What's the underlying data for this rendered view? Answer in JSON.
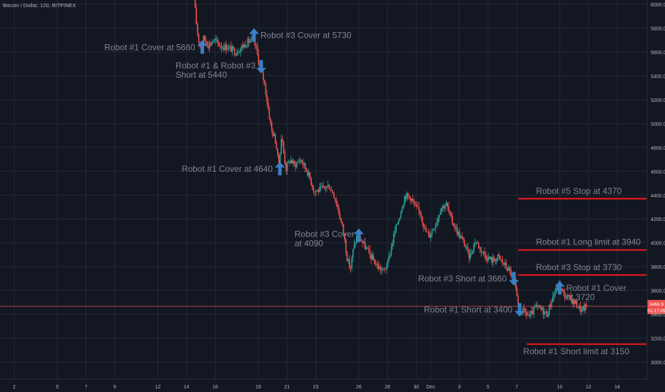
{
  "header": {
    "symbol_line": "Bitcoin / Dollar, 120, BITFINEX"
  },
  "colors": {
    "background": "#131722",
    "grid": "#242a38",
    "up": "#26a69a",
    "down": "#ef5350",
    "level": "#e0191d",
    "arrow": "#3b7fc4",
    "annotation": "#7f8591",
    "axis_text": "#b2b5be",
    "price_tag": "#ef5350"
  },
  "chart_data": {
    "type": "candlestick",
    "title": "",
    "xlabel": "",
    "ylabel": "",
    "ylim": [
      2950,
      6060
    ],
    "y_ticks": [
      3000,
      3200,
      3400,
      3600,
      3800,
      4000,
      4200,
      4400,
      4600,
      4800,
      5000,
      5200,
      5400,
      5600,
      5800,
      6000
    ],
    "y_tick_labels": [
      "3000.0",
      "3200.0",
      "3400.0",
      "3600.0",
      "3800.0",
      "4000.0",
      "4200.0",
      "4400.0",
      "4600.0",
      "4800.0",
      "5000.0",
      "5200.0",
      "5400.0",
      "5600.0",
      "5800.0",
      "6000.0"
    ],
    "x_ticks": [
      {
        "day": 2,
        "label": "2"
      },
      {
        "day": 5,
        "label": "5"
      },
      {
        "day": 7,
        "label": "7"
      },
      {
        "day": 9,
        "label": "9"
      },
      {
        "day": 12,
        "label": "12"
      },
      {
        "day": 14,
        "label": "14"
      },
      {
        "day": 16,
        "label": "16"
      },
      {
        "day": 19,
        "label": "19"
      },
      {
        "day": 21,
        "label": "21"
      },
      {
        "day": 23,
        "label": "23"
      },
      {
        "day": 26,
        "label": "26"
      },
      {
        "day": 28,
        "label": "28"
      },
      {
        "day": 30,
        "label": "30"
      },
      {
        "day": 31,
        "label": "Dec"
      },
      {
        "day": 33,
        "label": "3"
      },
      {
        "day": 35,
        "label": "5"
      },
      {
        "day": 37,
        "label": "7"
      },
      {
        "day": 40,
        "label": "10"
      },
      {
        "day": 42,
        "label": "12"
      },
      {
        "day": 44,
        "label": "14"
      }
    ],
    "price_path": [
      [
        14.6,
        6050
      ],
      [
        14.8,
        5800
      ],
      [
        15.0,
        5650
      ],
      [
        15.3,
        5720
      ],
      [
        15.6,
        5660
      ],
      [
        16.0,
        5700
      ],
      [
        16.5,
        5650
      ],
      [
        17.0,
        5640
      ],
      [
        17.5,
        5600
      ],
      [
        18.0,
        5650
      ],
      [
        18.3,
        5680
      ],
      [
        18.6,
        5700
      ],
      [
        18.9,
        5650
      ],
      [
        19.2,
        5470
      ],
      [
        19.5,
        5350
      ],
      [
        19.8,
        5100
      ],
      [
        20.0,
        4950
      ],
      [
        20.3,
        4850
      ],
      [
        20.5,
        4640
      ],
      [
        20.7,
        4900
      ],
      [
        21.0,
        4620
      ],
      [
        21.3,
        4700
      ],
      [
        21.6,
        4650
      ],
      [
        22.0,
        4700
      ],
      [
        22.5,
        4600
      ],
      [
        23.0,
        4430
      ],
      [
        23.5,
        4450
      ],
      [
        24.0,
        4480
      ],
      [
        24.3,
        4420
      ],
      [
        24.6,
        4300
      ],
      [
        25.0,
        4100
      ],
      [
        25.3,
        3850
      ],
      [
        25.5,
        3780
      ],
      [
        25.7,
        3950
      ],
      [
        26.0,
        4080
      ],
      [
        26.3,
        4010
      ],
      [
        26.6,
        3950
      ],
      [
        27.0,
        3870
      ],
      [
        27.4,
        3800
      ],
      [
        27.8,
        3760
      ],
      [
        28.1,
        3830
      ],
      [
        28.5,
        4050
      ],
      [
        28.9,
        4220
      ],
      [
        29.3,
        4400
      ],
      [
        29.7,
        4380
      ],
      [
        30.0,
        4300
      ],
      [
        30.4,
        4250
      ],
      [
        30.7,
        4100
      ],
      [
        31.0,
        4060
      ],
      [
        31.5,
        4180
      ],
      [
        31.8,
        4300
      ],
      [
        32.2,
        4320
      ],
      [
        32.5,
        4200
      ],
      [
        33.0,
        4080
      ],
      [
        33.4,
        4000
      ],
      [
        33.8,
        3880
      ],
      [
        34.2,
        4020
      ],
      [
        34.6,
        3940
      ],
      [
        35.0,
        3880
      ],
      [
        35.4,
        3850
      ],
      [
        35.8,
        3880
      ],
      [
        36.2,
        3820
      ],
      [
        36.6,
        3760
      ],
      [
        36.9,
        3680
      ],
      [
        37.2,
        3450
      ],
      [
        37.6,
        3420
      ],
      [
        38.0,
        3380
      ],
      [
        38.4,
        3460
      ],
      [
        38.8,
        3440
      ],
      [
        39.2,
        3400
      ],
      [
        39.6,
        3550
      ],
      [
        40.0,
        3640
      ],
      [
        40.4,
        3560
      ],
      [
        40.8,
        3530
      ],
      [
        41.2,
        3490
      ],
      [
        41.6,
        3430
      ],
      [
        41.9,
        3466
      ]
    ],
    "last_price": {
      "value": 3466.9,
      "label": "3466.9",
      "countdown": "01:17:09"
    },
    "levels": [
      {
        "price": 4370,
        "x_start": 37.1,
        "label": "Robot #5 Stop at 4370"
      },
      {
        "price": 3940,
        "x_start": 37.1,
        "label": "Robot #1 Long limit at 3940"
      },
      {
        "price": 3730,
        "x_start": 37.1,
        "label": "Robot #3 Stop at 3730"
      },
      {
        "price": 3150,
        "x_start": 37.7,
        "label": "Robot #1 Short limit at 3150"
      }
    ],
    "annotations": [
      {
        "lines": [
          "Robot #1 Cover at 5660"
        ],
        "day": 15.1,
        "price": 5640,
        "dir": "up",
        "align": "left"
      },
      {
        "lines": [
          "Robot #3 Cover at 5730"
        ],
        "day": 18.7,
        "price": 5740,
        "dir": "up",
        "align": "right"
      },
      {
        "lines": [
          "Robot #1 & Robot #3",
          "Short at 5440"
        ],
        "day": 19.2,
        "price": 5480,
        "dir": "down",
        "align": "left"
      },
      {
        "lines": [
          "Robot #1 Cover at 4640"
        ],
        "day": 20.5,
        "price": 4620,
        "dir": "up",
        "align": "left"
      },
      {
        "lines": [
          "Robot #3 Cover",
          "at 4090"
        ],
        "day": 26.0,
        "price": 4060,
        "dir": "up",
        "align": "left"
      },
      {
        "lines": [
          "Robot #3 Short at 3660"
        ],
        "day": 36.8,
        "price": 3700,
        "dir": "down",
        "align": "left"
      },
      {
        "lines": [
          "Robot #1 Short at 3400"
        ],
        "day": 37.2,
        "price": 3440,
        "dir": "down",
        "align": "left"
      },
      {
        "lines": [
          "Robot #1 Cover",
          "at 3720"
        ],
        "day": 40.0,
        "price": 3620,
        "dir": "up",
        "align": "right"
      }
    ]
  }
}
